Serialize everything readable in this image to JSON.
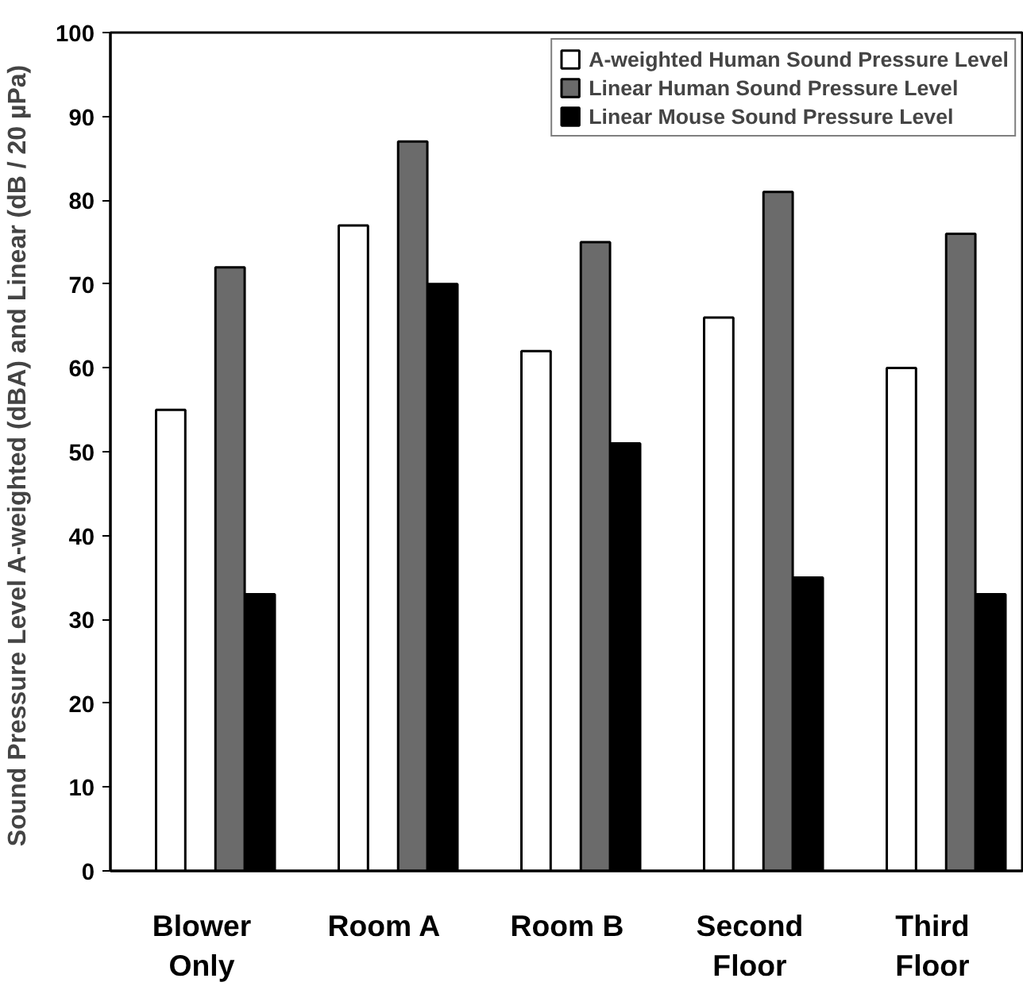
{
  "chart_data": {
    "type": "bar",
    "ylabel": "Sound Pressure Level A-weighted (dBA) and  Linear (dB / 20 µPa)",
    "categories": [
      "Blower\nOnly",
      "Room A",
      "Room B",
      "Second\nFloor",
      "Third\nFloor"
    ],
    "series": [
      {
        "name": "A-weighted Human Sound Pressure Level",
        "color": "#ffffff",
        "values": [
          55,
          77,
          62,
          66,
          60
        ]
      },
      {
        "name": "Linear Human Sound Pressure Level",
        "color": "#6b6b6b",
        "values": [
          72,
          87,
          75,
          81,
          76
        ]
      },
      {
        "name": "Linear Mouse Sound Pressure Level",
        "color": "#000000",
        "values": [
          33,
          70,
          51,
          35,
          33
        ]
      }
    ],
    "ylim": [
      0,
      100
    ],
    "yticks": [
      0,
      10,
      20,
      30,
      40,
      50,
      60,
      70,
      80,
      90,
      100
    ],
    "grid": false,
    "legend": "top right"
  }
}
